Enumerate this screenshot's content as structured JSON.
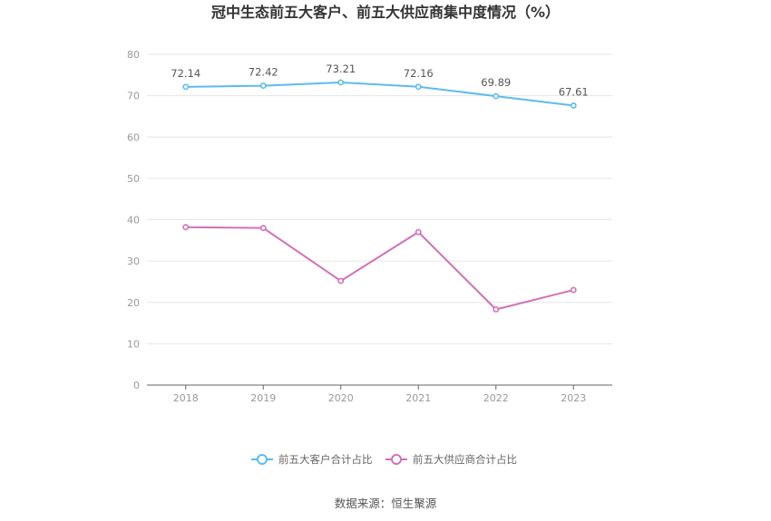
{
  "chart_data": {
    "type": "line",
    "title": "冠中生态前五大客户、前五大供应商集中度情况（%）",
    "categories": [
      "2018",
      "2019",
      "2020",
      "2021",
      "2022",
      "2023"
    ],
    "ylim": [
      0,
      80
    ],
    "yticks": [
      0,
      10,
      20,
      30,
      40,
      50,
      60,
      70,
      80
    ],
    "grid": true,
    "legend_position": "bottom",
    "series": [
      {
        "name": "前五大客户合计占比",
        "color": "#5bbcef",
        "values": [
          72.14,
          72.42,
          73.21,
          72.16,
          69.89,
          67.61
        ],
        "labels": [
          "72.14",
          "72.42",
          "73.21",
          "72.16",
          "69.89",
          "67.61"
        ]
      },
      {
        "name": "前五大供应商合计占比",
        "color": "#d46fb7",
        "values": [
          38.2,
          38.0,
          25.2,
          37.0,
          18.3,
          23.0
        ]
      }
    ]
  },
  "source": "数据来源：恒生聚源"
}
